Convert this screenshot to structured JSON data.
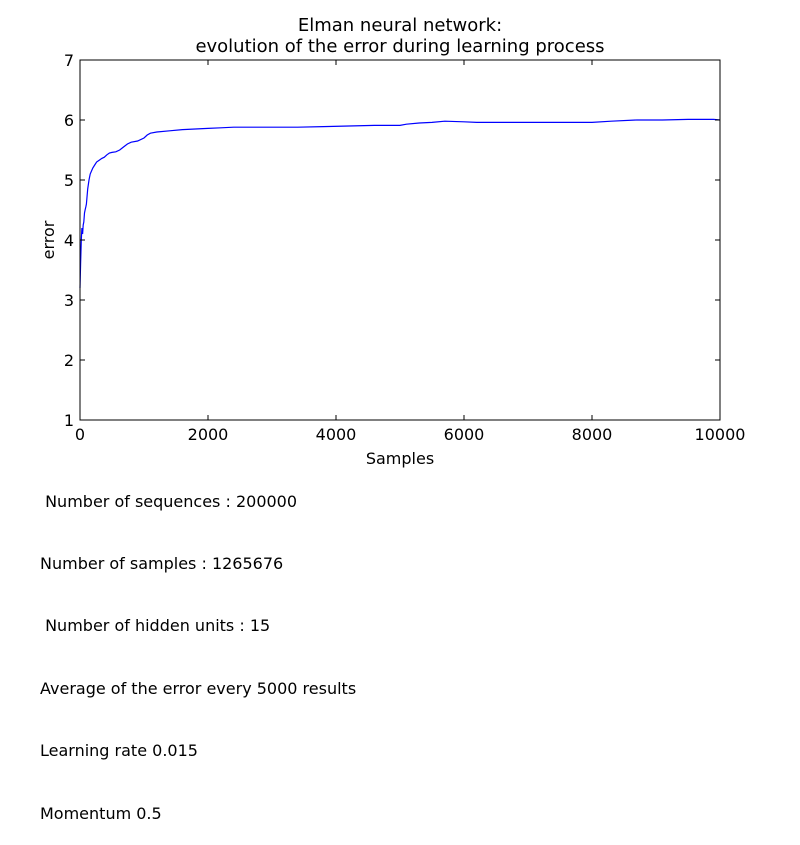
{
  "chart_data": {
    "type": "line",
    "title": [
      "Elman neural network:",
      "evolution of the error during learning process"
    ],
    "xlabel": "Samples",
    "ylabel": "error",
    "xlim": [
      0,
      10000
    ],
    "ylim": [
      1,
      7
    ],
    "xticks": [
      0,
      2000,
      4000,
      6000,
      8000,
      10000
    ],
    "yticks": [
      1,
      2,
      3,
      4,
      5,
      6,
      7
    ],
    "grid": false,
    "line_color": "#0000ff",
    "series": [
      {
        "x": [
          0,
          10,
          20,
          30,
          40,
          50,
          60,
          70,
          80,
          90,
          100,
          120,
          140,
          160,
          180,
          200,
          230,
          260,
          300,
          340,
          380,
          420,
          460,
          500,
          560,
          620,
          680,
          740,
          800,
          900,
          1000,
          1050,
          1100,
          1200,
          1400,
          1600,
          1800,
          2000,
          2200,
          2400,
          2600,
          3000,
          3400,
          3800,
          4200,
          4600,
          5000,
          5100,
          5300,
          5500,
          5700,
          6000,
          6200,
          6600,
          7000,
          7600,
          8000,
          8300,
          8700,
          9100,
          9500,
          9900,
          10000
        ],
        "y": [
          3.2,
          3.6,
          4.0,
          4.2,
          4.1,
          4.25,
          4.3,
          4.45,
          4.5,
          4.55,
          4.6,
          4.85,
          5.0,
          5.1,
          5.15,
          5.2,
          5.25,
          5.3,
          5.33,
          5.36,
          5.38,
          5.42,
          5.45,
          5.46,
          5.47,
          5.5,
          5.55,
          5.6,
          5.63,
          5.65,
          5.7,
          5.75,
          5.78,
          5.8,
          5.82,
          5.84,
          5.85,
          5.86,
          5.87,
          5.88,
          5.88,
          5.88,
          5.88,
          5.89,
          5.9,
          5.91,
          5.91,
          5.93,
          5.95,
          5.96,
          5.98,
          5.97,
          5.96,
          5.96,
          5.96,
          5.96,
          5.96,
          5.98,
          6.0,
          6.0,
          6.01,
          6.01,
          6.0
        ]
      }
    ]
  },
  "info_lines": [
    " Number of sequences : 200000",
    "Number of samples : 1265676",
    " Number of hidden units : 15",
    "Average of the error every 5000 results",
    "Learning rate 0.015",
    "Momentum 0.5"
  ]
}
